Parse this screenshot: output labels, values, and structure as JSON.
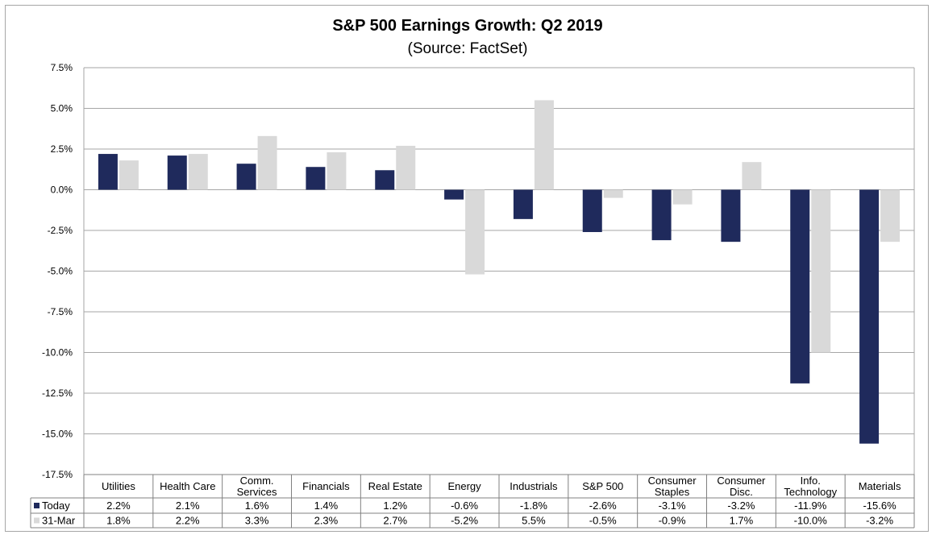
{
  "chart_data": {
    "type": "bar",
    "title": "S&P 500 Earnings Growth: Q2 2019",
    "subtitle": "(Source: FactSet)",
    "categories": [
      "Utilities",
      "Health Care",
      "Comm. Services",
      "Financials",
      "Real Estate",
      "Energy",
      "Industrials",
      "S&P 500",
      "Consumer Staples",
      "Consumer Disc.",
      "Info. Technology",
      "Materials"
    ],
    "category_lines": [
      [
        "Utilities"
      ],
      [
        "Health Care"
      ],
      [
        "Comm.",
        "Services"
      ],
      [
        "Financials"
      ],
      [
        "Real Estate"
      ],
      [
        "Energy"
      ],
      [
        "Industrials"
      ],
      [
        "S&P 500"
      ],
      [
        "Consumer",
        "Staples"
      ],
      [
        "Consumer",
        "Disc."
      ],
      [
        "Info.",
        "Technology"
      ],
      [
        "Materials"
      ]
    ],
    "series": [
      {
        "name": "Today",
        "color": "#1f2a5c",
        "values": [
          2.2,
          2.1,
          1.6,
          1.4,
          1.2,
          -0.6,
          -1.8,
          -2.6,
          -3.1,
          -3.2,
          -11.9,
          -15.6
        ],
        "labels": [
          "2.2%",
          "2.1%",
          "1.6%",
          "1.4%",
          "1.2%",
          "-0.6%",
          "-1.8%",
          "-2.6%",
          "-3.1%",
          "-3.2%",
          "-11.9%",
          "-15.6%"
        ]
      },
      {
        "name": "31-Mar",
        "color": "#d9d9d9",
        "values": [
          1.8,
          2.2,
          3.3,
          2.3,
          2.7,
          -5.2,
          5.5,
          -0.5,
          -0.9,
          1.7,
          -10.0,
          -3.2
        ],
        "labels": [
          "1.8%",
          "2.2%",
          "3.3%",
          "2.3%",
          "2.7%",
          "-5.2%",
          "5.5%",
          "-0.5%",
          "-0.9%",
          "1.7%",
          "-10.0%",
          "-3.2%"
        ]
      }
    ],
    "ylim": [
      -17.5,
      7.5
    ],
    "yticks": [
      7.5,
      5.0,
      2.5,
      0.0,
      -2.5,
      -5.0,
      -7.5,
      -10.0,
      -12.5,
      -15.0,
      -17.5
    ],
    "ytick_labels": [
      "7.5%",
      "5.0%",
      "2.5%",
      "0.0%",
      "-2.5%",
      "-5.0%",
      "-7.5%",
      "-10.0%",
      "-12.5%",
      "-15.0%",
      "-17.5%"
    ],
    "grid": true,
    "legend": "data-table"
  }
}
